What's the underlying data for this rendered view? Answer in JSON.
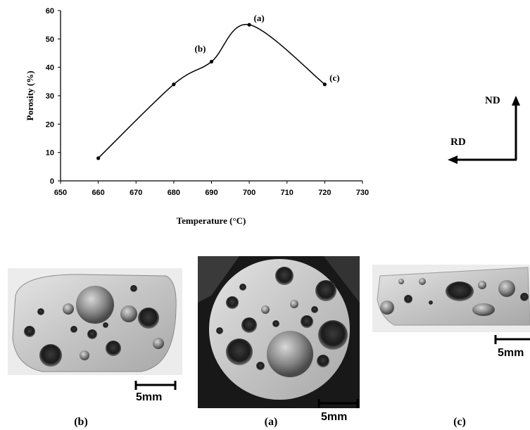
{
  "chart_data": {
    "type": "line",
    "xlabel": "Temperature (°C)",
    "ylabel": "Porosity (%)",
    "x_ticks": [
      650,
      660,
      670,
      680,
      690,
      700,
      710,
      720,
      730
    ],
    "y_ticks": [
      0,
      10,
      20,
      30,
      40,
      50,
      60
    ],
    "xlim": [
      650,
      730
    ],
    "ylim": [
      0,
      60
    ],
    "grid": false,
    "series": [
      {
        "x": [
          660,
          680,
          690,
          700,
          720
        ],
        "y": [
          8,
          34,
          42,
          55,
          34
        ],
        "smooth": true,
        "color": "#000000"
      }
    ],
    "annotations": [
      {
        "text": "(a)",
        "x": 700,
        "y": 55
      },
      {
        "text": "(b)",
        "x": 690,
        "y": 42
      },
      {
        "text": "(c)",
        "x": 720,
        "y": 34
      }
    ]
  },
  "axes_indicator": {
    "nd_label": "ND",
    "rd_label": "RD"
  },
  "photos": [
    {
      "caption": "(b)",
      "scale_label": "5mm"
    },
    {
      "caption": "(a)",
      "scale_label": "5mm"
    },
    {
      "caption": "(c)",
      "scale_label": "5mm"
    }
  ]
}
